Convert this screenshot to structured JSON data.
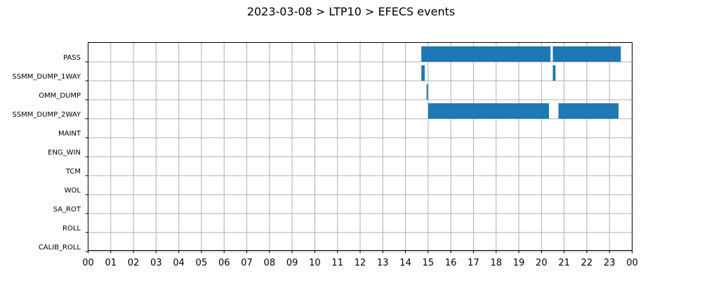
{
  "chart_data": {
    "type": "timeline",
    "title": "2023-03-08 > LTP10 > EFECS events",
    "categories": [
      "PASS",
      "SSMM_DUMP_1WAY",
      "OMM_DUMP",
      "SSMM_DUMP_2WAY",
      "MAINT",
      "ENG_WIN",
      "TCM",
      "WOL",
      "SA_ROT",
      "ROLL",
      "CALIB_ROLL"
    ],
    "xlim": [
      0,
      24
    ],
    "x_unit": "hour",
    "x_ticks": [
      "00",
      "01",
      "02",
      "03",
      "04",
      "05",
      "06",
      "07",
      "08",
      "09",
      "10",
      "11",
      "12",
      "13",
      "14",
      "15",
      "16",
      "17",
      "18",
      "19",
      "20",
      "21",
      "22",
      "23",
      "00"
    ],
    "grid": true,
    "bar_color": "#1f77b4",
    "series": [
      {
        "category": "PASS",
        "intervals": [
          [
            14.7,
            20.4
          ],
          [
            20.5,
            23.5
          ]
        ]
      },
      {
        "category": "SSMM_DUMP_1WAY",
        "intervals": [
          [
            14.7,
            14.85
          ],
          [
            20.5,
            20.62
          ]
        ]
      },
      {
        "category": "OMM_DUMP",
        "intervals": [
          [
            14.93,
            14.99
          ]
        ]
      },
      {
        "category": "SSMM_DUMP_2WAY",
        "intervals": [
          [
            15.0,
            20.33
          ],
          [
            20.75,
            23.4
          ]
        ]
      },
      {
        "category": "MAINT",
        "intervals": []
      },
      {
        "category": "ENG_WIN",
        "intervals": []
      },
      {
        "category": "TCM",
        "intervals": []
      },
      {
        "category": "WOL",
        "intervals": []
      },
      {
        "category": "SA_ROT",
        "intervals": []
      },
      {
        "category": "ROLL",
        "intervals": []
      },
      {
        "category": "CALIB_ROLL",
        "intervals": []
      }
    ]
  }
}
